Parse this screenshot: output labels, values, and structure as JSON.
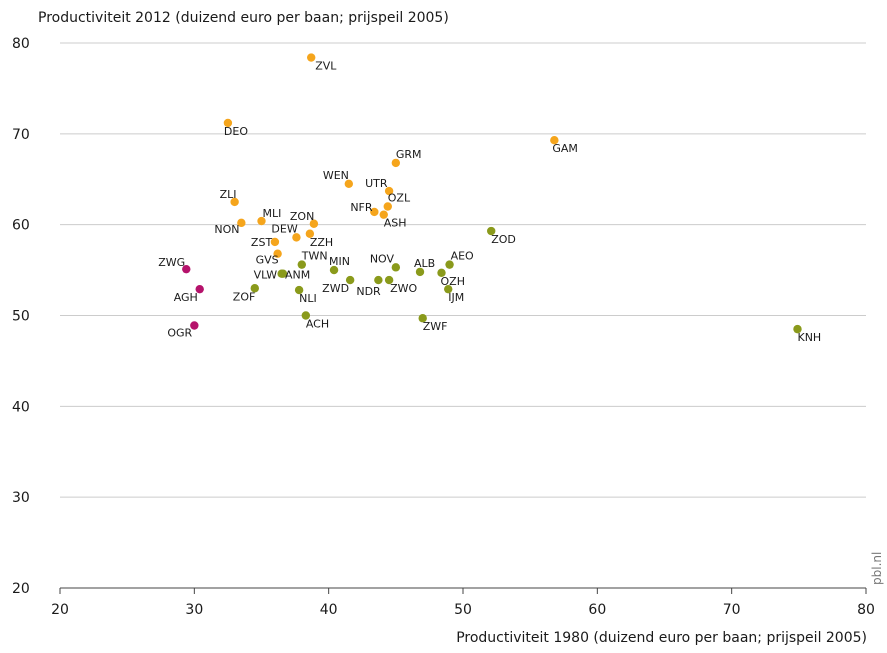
{
  "chart_data": {
    "type": "scatter",
    "ylabel": "Productiviteit 2012 (duizend euro per baan; prijspeil 2005)",
    "xlabel": "Productiviteit 1980 (duizend euro per baan; prijspeil 2005)",
    "xlim": [
      20,
      80
    ],
    "ylim": [
      20,
      80
    ],
    "xticks": [
      20,
      30,
      40,
      50,
      60,
      70,
      80
    ],
    "yticks": [
      20,
      30,
      40,
      50,
      60,
      70,
      80
    ],
    "grid": "horizontal",
    "credit": "pbl.nl",
    "colors": {
      "orange": "#f5a51c",
      "olive": "#8a9a1b",
      "magenta": "#b5126b"
    },
    "points": [
      {
        "label": "ZVL",
        "x": 38.7,
        "y": 78.4,
        "group": "orange"
      },
      {
        "label": "DEO",
        "x": 32.5,
        "y": 71.2,
        "group": "orange"
      },
      {
        "label": "GAM",
        "x": 56.8,
        "y": 69.3,
        "group": "orange"
      },
      {
        "label": "GRM",
        "x": 45.0,
        "y": 66.8,
        "group": "orange"
      },
      {
        "label": "WEN",
        "x": 41.5,
        "y": 64.5,
        "group": "orange"
      },
      {
        "label": "UTR",
        "x": 44.5,
        "y": 63.7,
        "group": "orange"
      },
      {
        "label": "ZLI",
        "x": 33.0,
        "y": 62.5,
        "group": "orange"
      },
      {
        "label": "OZL",
        "x": 44.4,
        "y": 62.0,
        "group": "orange"
      },
      {
        "label": "NFR",
        "x": 43.4,
        "y": 61.4,
        "group": "orange"
      },
      {
        "label": "ASH",
        "x": 44.1,
        "y": 61.1,
        "group": "orange"
      },
      {
        "label": "MLI",
        "x": 35.0,
        "y": 60.4,
        "group": "orange"
      },
      {
        "label": "NON",
        "x": 33.5,
        "y": 60.2,
        "group": "orange"
      },
      {
        "label": "ZON",
        "x": 38.9,
        "y": 60.1,
        "group": "orange"
      },
      {
        "label": "ZOD",
        "x": 52.1,
        "y": 59.3,
        "group": "olive"
      },
      {
        "label": "DEW",
        "x": 37.6,
        "y": 58.6,
        "group": "orange"
      },
      {
        "label": "ZZH",
        "x": 38.6,
        "y": 59.0,
        "group": "orange"
      },
      {
        "label": "ZST",
        "x": 36.0,
        "y": 58.1,
        "group": "orange"
      },
      {
        "label": "GVS",
        "x": 36.2,
        "y": 56.8,
        "group": "orange"
      },
      {
        "label": "TWN",
        "x": 38.0,
        "y": 55.6,
        "group": "olive"
      },
      {
        "label": "AEO",
        "x": 49.0,
        "y": 55.6,
        "group": "olive"
      },
      {
        "label": "NOV",
        "x": 45.0,
        "y": 55.3,
        "group": "olive"
      },
      {
        "label": "ZWG",
        "x": 29.4,
        "y": 55.1,
        "group": "magenta"
      },
      {
        "label": "MIN",
        "x": 40.4,
        "y": 55.0,
        "group": "olive"
      },
      {
        "label": "ALB",
        "x": 46.8,
        "y": 54.8,
        "group": "olive"
      },
      {
        "label": "VLW",
        "x": 36.5,
        "y": 54.6,
        "group": "olive"
      },
      {
        "label": "ANM",
        "x": 36.6,
        "y": 54.6,
        "group": "olive"
      },
      {
        "label": "OZH",
        "x": 48.4,
        "y": 54.7,
        "group": "olive"
      },
      {
        "label": "ZWD",
        "x": 41.6,
        "y": 53.9,
        "group": "olive"
      },
      {
        "label": "NDR",
        "x": 43.7,
        "y": 53.9,
        "group": "olive"
      },
      {
        "label": "ZWO",
        "x": 44.5,
        "y": 53.9,
        "group": "olive"
      },
      {
        "label": "ZOF",
        "x": 34.5,
        "y": 53.0,
        "group": "olive"
      },
      {
        "label": "AGH",
        "x": 30.4,
        "y": 52.9,
        "group": "magenta"
      },
      {
        "label": "IJM",
        "x": 48.9,
        "y": 52.9,
        "group": "olive"
      },
      {
        "label": "NLI",
        "x": 37.8,
        "y": 52.8,
        "group": "olive"
      },
      {
        "label": "ACH",
        "x": 38.3,
        "y": 50.0,
        "group": "olive"
      },
      {
        "label": "ZWF",
        "x": 47.0,
        "y": 49.7,
        "group": "olive"
      },
      {
        "label": "OGR",
        "x": 30.0,
        "y": 48.9,
        "group": "magenta"
      },
      {
        "label": "KNH",
        "x": 74.9,
        "y": 48.5,
        "group": "olive"
      }
    ]
  }
}
